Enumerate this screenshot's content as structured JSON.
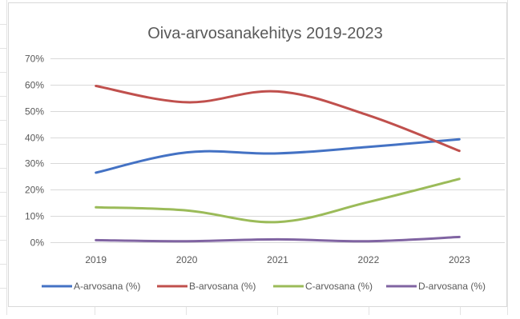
{
  "chart_data": {
    "type": "line",
    "title": "Oiva-arvosanakehitys 2019-2023",
    "xlabel": "",
    "ylabel": "",
    "categories": [
      "2019",
      "2020",
      "2021",
      "2022",
      "2023"
    ],
    "y_ticks": [
      "0%",
      "10%",
      "20%",
      "30%",
      "40%",
      "50%",
      "60%",
      "70%"
    ],
    "ylim": [
      0,
      70
    ],
    "grid": "horizontal",
    "legend_position": "bottom",
    "series": [
      {
        "name": "A-arvosana (%)",
        "color": "#4472C4",
        "values": [
          26.5,
          34.2,
          33.8,
          36.3,
          39.2
        ]
      },
      {
        "name": "B-arvosana (%)",
        "color": "#C0504D",
        "values": [
          59.5,
          53.3,
          57.4,
          48.3,
          34.8
        ]
      },
      {
        "name": "C-arvosana (%)",
        "color": "#9BBB59",
        "values": [
          13.3,
          12.1,
          7.7,
          15.3,
          24.1
        ]
      },
      {
        "name": "D-arvosana (%)",
        "color": "#8064A2",
        "values": [
          0.8,
          0.4,
          1.1,
          0.4,
          2.0
        ]
      }
    ]
  }
}
